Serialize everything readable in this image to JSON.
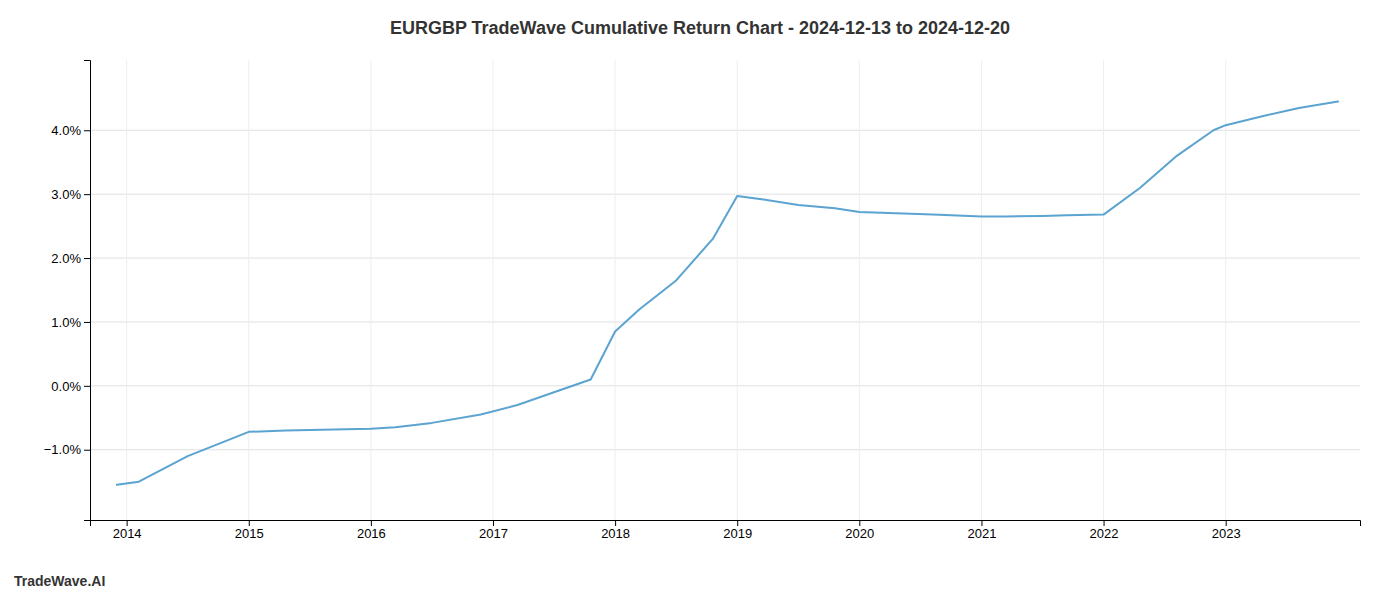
{
  "chart_data": {
    "type": "line",
    "title": "EURGBP TradeWave Cumulative Return Chart - 2024-12-13 to 2024-12-20",
    "annotations": [
      "TradeWave.AI"
    ],
    "x": [
      2013.92,
      2014.1,
      2014.5,
      2015.0,
      2015.3,
      2015.8,
      2016.0,
      2016.2,
      2016.5,
      2016.9,
      2017.2,
      2017.5,
      2017.8,
      2018.0,
      2018.2,
      2018.5,
      2018.8,
      2019.0,
      2019.2,
      2019.5,
      2019.8,
      2020.0,
      2020.3,
      2020.6,
      2020.9,
      2021.0,
      2021.2,
      2021.5,
      2021.7,
      2022.0,
      2022.3,
      2022.6,
      2022.9,
      2023.0,
      2023.3,
      2023.6,
      2023.92
    ],
    "values": [
      -1.55,
      -1.5,
      -1.1,
      -0.72,
      -0.7,
      -0.68,
      -0.67,
      -0.65,
      -0.58,
      -0.45,
      -0.3,
      -0.1,
      0.1,
      0.85,
      1.2,
      1.65,
      2.3,
      2.97,
      2.92,
      2.83,
      2.78,
      2.72,
      2.7,
      2.68,
      2.66,
      2.65,
      2.65,
      2.66,
      2.67,
      2.68,
      3.1,
      3.6,
      4.0,
      4.08,
      4.22,
      4.35,
      4.45
    ],
    "color": "#5ba3d0",
    "xlim": [
      2013.7,
      2024.1
    ],
    "ylim": [
      -2.1,
      5.1
    ],
    "xticks": [
      2014,
      2015,
      2016,
      2017,
      2018,
      2019,
      2020,
      2021,
      2022,
      2023
    ],
    "yticks": [
      {
        "value": -1.0,
        "label": "−1.0%"
      },
      {
        "value": 0.0,
        "label": "0.0%"
      },
      {
        "value": 1.0,
        "label": "1.0%"
      },
      {
        "value": 2.0,
        "label": "2.0%"
      },
      {
        "value": 3.0,
        "label": "3.0%"
      },
      {
        "value": 4.0,
        "label": "4.0%"
      }
    ],
    "grid": true
  }
}
